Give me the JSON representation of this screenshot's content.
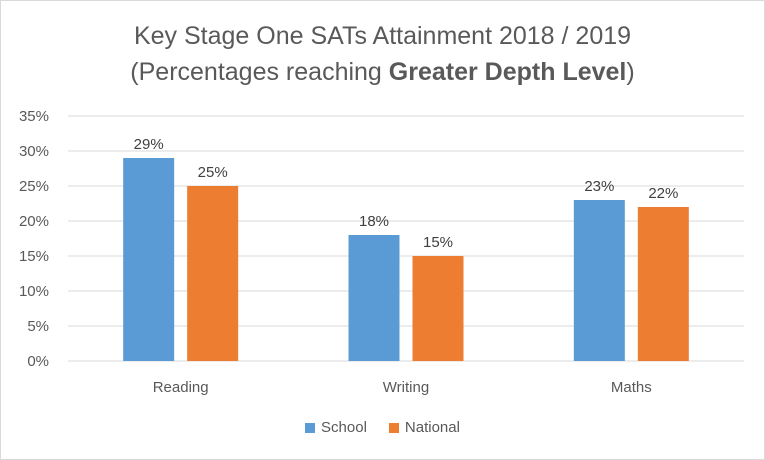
{
  "chart_data": {
    "type": "bar",
    "title_line1": "Key Stage One SATs Attainment 2018 / 2019",
    "title_line2_prefix": "(Percentages reaching ",
    "title_line2_bold": "Greater Depth Level",
    "title_line2_suffix": ")",
    "categories": [
      "Reading",
      "Writing",
      "Maths"
    ],
    "series": [
      {
        "name": "School",
        "color": "#5b9bd5",
        "values": [
          29,
          18,
          23
        ],
        "labels": [
          "29%",
          "18%",
          "23%"
        ]
      },
      {
        "name": "National",
        "color": "#ed7d31",
        "values": [
          25,
          15,
          22
        ],
        "labels": [
          "25%",
          "15%",
          "22%"
        ]
      }
    ],
    "ylim": [
      0,
      35
    ],
    "y_ticks": [
      0,
      5,
      10,
      15,
      20,
      25,
      30,
      35
    ],
    "y_tick_labels": [
      "0%",
      "5%",
      "10%",
      "15%",
      "20%",
      "25%",
      "30%",
      "35%"
    ],
    "grid": true,
    "legend_position": "bottom"
  }
}
